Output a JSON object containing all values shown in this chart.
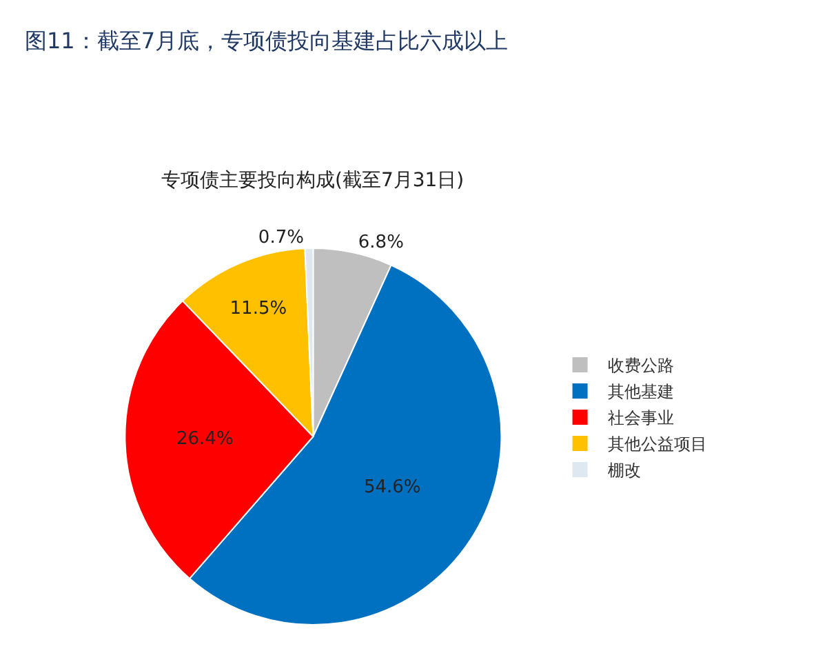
{
  "chart_data": {
    "type": "pie",
    "title": "图11：截至7月底，专项债投向基建占比六成以上",
    "subtitle": "专项债主要投向构成(截至7月31日)",
    "categories": [
      "收费公路",
      "其他基建",
      "社会事业",
      "其他公益项目",
      "棚改"
    ],
    "values": [
      6.8,
      54.6,
      26.4,
      11.5,
      0.7
    ],
    "colors": [
      "#bfbfbf",
      "#0070c0",
      "#ff0000",
      "#ffc000",
      "#dde8f0"
    ],
    "value_labels": [
      "6.8%",
      "54.6%",
      "26.4%",
      "11.5%",
      "0.7%"
    ],
    "legend": "right"
  }
}
